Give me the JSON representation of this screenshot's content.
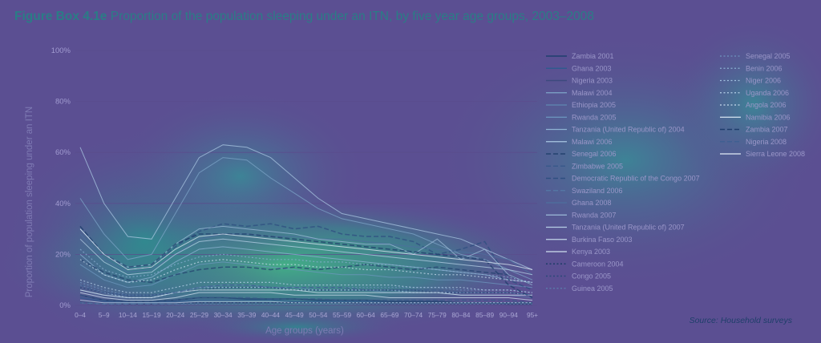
{
  "figure": {
    "title_prefix": "Figure Box 4.1e",
    "title_rest": " Proportion of the population sleeping under an ITN, by five year age groups, 2003–2008",
    "source_label": "Source:",
    "source_text": " Household surveys"
  },
  "chart_data": {
    "type": "line",
    "title": "Proportion of the population sleeping under an ITN, by five year age groups, 2003–2008",
    "xlabel": "Age groups (years)",
    "ylabel": "Proportion of population sleeping under an ITN",
    "ylim": [
      0,
      100
    ],
    "yticks": [
      0,
      20,
      40,
      60,
      80,
      100
    ],
    "ytick_labels": [
      "0%",
      "20%",
      "40%",
      "60%",
      "80%",
      "100%"
    ],
    "grid": true,
    "legend_position": "right",
    "categories": [
      "0–4",
      "5–9",
      "10–14",
      "15–19",
      "20–24",
      "25–29",
      "30–34",
      "35–39",
      "40–44",
      "45–49",
      "50–54",
      "55–59",
      "60–64",
      "65–69",
      "70–74",
      "75–79",
      "80–84",
      "85–89",
      "90–94",
      "95+"
    ],
    "series": [
      {
        "name": "Zambia 2001",
        "style": "solid",
        "color": "#1e3f6e",
        "width": 1.6,
        "values": [
          4,
          2,
          1.5,
          1.5,
          2,
          3,
          3,
          2.5,
          2.5,
          2.5,
          2,
          2,
          2,
          1.5,
          1.5,
          1.5,
          1,
          1,
          0.5,
          0.5
        ]
      },
      {
        "name": "Ghana 2003",
        "style": "solid",
        "color": "#2f5a8f",
        "width": 1.4,
        "values": [
          3,
          1.5,
          1,
          1,
          1.5,
          2,
          2,
          2,
          2,
          1.5,
          1.5,
          1.5,
          1.5,
          1,
          1,
          1,
          1,
          1,
          1,
          1
        ]
      },
      {
        "name": "Nigeria 2003",
        "style": "solid",
        "color": "#3c4a7d",
        "width": 1.4,
        "values": [
          1.5,
          1,
          0.5,
          0.5,
          1,
          1,
          1,
          1,
          1,
          1,
          1,
          1,
          0.5,
          0.5,
          0.5,
          0.5,
          0.5,
          0.5,
          0.5,
          0.5
        ]
      },
      {
        "name": "Malawi 2004",
        "style": "solid",
        "color": "#7ea6c8",
        "width": 1.0,
        "values": [
          42,
          28,
          18,
          20,
          36,
          52,
          58,
          57,
          50,
          44,
          38,
          34,
          32,
          30,
          28,
          24,
          20,
          18,
          14,
          10
        ]
      },
      {
        "name": "Ethiopia 2005",
        "style": "solid",
        "color": "#5f88b2",
        "width": 1.0,
        "values": [
          6,
          4,
          3,
          3,
          5,
          7,
          8,
          8,
          7,
          7,
          6,
          6,
          6,
          5,
          5,
          5,
          4,
          4,
          4,
          3
        ]
      },
      {
        "name": "Rwanda 2005",
        "style": "solid",
        "color": "#6d97bf",
        "width": 1.0,
        "values": [
          16,
          10,
          7,
          8,
          12,
          16,
          17,
          16,
          15,
          14,
          13,
          12,
          12,
          11,
          11,
          10,
          10,
          9,
          8,
          7
        ]
      },
      {
        "name": "Tanzania (United Republic of) 2004",
        "style": "solid",
        "color": "#8fb3d4",
        "width": 1.0,
        "values": [
          20,
          12,
          9,
          11,
          17,
          22,
          23,
          22,
          21,
          20,
          19,
          18,
          17,
          16,
          15,
          14,
          13,
          12,
          10,
          9
        ]
      },
      {
        "name": "Malawi 2006",
        "style": "solid",
        "color": "#a9c7e2",
        "width": 1.0,
        "values": [
          62,
          40,
          27,
          26,
          42,
          58,
          63,
          62,
          58,
          50,
          42,
          36,
          34,
          32,
          30,
          28,
          26,
          22,
          18,
          14
        ]
      },
      {
        "name": "Senegal 2006",
        "style": "dashed",
        "color": "#24426f",
        "width": 1.5,
        "values": [
          18,
          13,
          10,
          9,
          12,
          14,
          15,
          15,
          14,
          15,
          14,
          15,
          16,
          15,
          14,
          15,
          14,
          13,
          12,
          8
        ]
      },
      {
        "name": "Zimbabwe 2005",
        "style": "dashed",
        "color": "#39598a",
        "width": 1.4,
        "values": [
          4,
          2,
          1.5,
          1.5,
          2,
          3,
          3,
          3,
          2.5,
          2.5,
          2.5,
          2,
          2,
          2,
          2,
          2,
          2,
          2,
          2,
          1
        ]
      },
      {
        "name": "Democratic Republic of the Congo 2007",
        "style": "dashed",
        "color": "#2f4f80",
        "width": 1.6,
        "values": [
          30,
          20,
          14,
          15,
          23,
          29,
          32,
          31,
          32,
          30,
          31,
          28,
          27,
          27,
          25,
          20,
          22,
          25,
          10,
          6
        ]
      },
      {
        "name": "Swaziland 2006",
        "style": "dashed",
        "color": "#5479a6",
        "width": 1.2,
        "values": [
          1,
          0.5,
          0.5,
          0.5,
          0.5,
          1,
          1,
          1,
          1,
          1,
          1,
          1,
          1,
          1,
          1,
          1,
          1,
          1,
          1,
          1
        ]
      },
      {
        "name": "Ghana 2008",
        "style": "solid",
        "color": "#4d6f9e",
        "width": 1.2,
        "values": [
          28,
          18,
          13,
          14,
          20,
          26,
          28,
          28,
          27,
          27,
          26,
          26,
          25,
          24,
          23,
          22,
          21,
          20,
          18,
          12
        ]
      },
      {
        "name": "Rwanda 2007",
        "style": "solid",
        "color": "#9dbbd8",
        "width": 1.0,
        "values": [
          30,
          20,
          15,
          16,
          24,
          30,
          31,
          30,
          29,
          28,
          26,
          25,
          24,
          24,
          20,
          26,
          18,
          22,
          12,
          8
        ]
      },
      {
        "name": "Tanzania (United Republic of) 2007",
        "style": "solid",
        "color": "#b7d0e6",
        "width": 1.0,
        "values": [
          26,
          17,
          12,
          13,
          20,
          25,
          26,
          25,
          24,
          23,
          22,
          21,
          20,
          19,
          18,
          17,
          16,
          15,
          14,
          12
        ]
      },
      {
        "name": "Burkina Faso 2003",
        "style": "solid",
        "color": "#c3d7ea",
        "width": 1.0,
        "values": [
          2,
          1,
          1,
          1,
          1,
          1.5,
          1.5,
          1.5,
          1.5,
          1,
          1,
          1,
          1,
          1,
          1,
          1,
          1,
          1,
          1,
          1
        ]
      },
      {
        "name": "Kenya 2003",
        "style": "solid",
        "color": "#d0e0ef",
        "width": 1.0,
        "values": [
          5,
          3,
          2,
          2,
          3,
          5,
          5,
          5,
          5,
          4,
          4,
          4,
          4,
          3,
          3,
          3,
          3,
          3,
          3,
          2
        ]
      },
      {
        "name": "Cameroon 2004",
        "style": "dotted",
        "color": "#1d3b68",
        "width": 1.6,
        "values": [
          1,
          0.5,
          0.5,
          0.5,
          0.5,
          1,
          1,
          1,
          1,
          1,
          1,
          1,
          1,
          1,
          1,
          1,
          1,
          1,
          1,
          1
        ]
      },
      {
        "name": "Congo 2005",
        "style": "dotted",
        "color": "#2b4878",
        "width": 1.6,
        "values": [
          7,
          5,
          4,
          4,
          5,
          6,
          7,
          7,
          7,
          6,
          6,
          6,
          6,
          6,
          6,
          5,
          5,
          5,
          5,
          4
        ]
      },
      {
        "name": "Guinea 2005",
        "style": "dotted",
        "color": "#5b80ad",
        "width": 1.2,
        "values": [
          1,
          0.5,
          0.5,
          0.5,
          0.5,
          0.5,
          0.5,
          0.5,
          0.5,
          0.5,
          0.5,
          0.5,
          0.5,
          0.5,
          0.5,
          0.5,
          0.5,
          0.5,
          0.5,
          0.5
        ]
      },
      {
        "name": "Senegal 2005",
        "style": "dotted",
        "color": "#6e93bf",
        "width": 1.2,
        "values": [
          9,
          6,
          4,
          4,
          5,
          7,
          7,
          7,
          7,
          7,
          7,
          7,
          7,
          7,
          7,
          7,
          6,
          6,
          6,
          5
        ]
      },
      {
        "name": "Benin 2006",
        "style": "dotted",
        "color": "#8aaed1",
        "width": 1.2,
        "values": [
          22,
          14,
          11,
          12,
          16,
          19,
          20,
          19,
          18,
          18,
          17,
          17,
          16,
          16,
          15,
          14,
          13,
          12,
          11,
          9
        ]
      },
      {
        "name": "Niger 2006",
        "style": "dotted",
        "color": "#a0c0de",
        "width": 1.2,
        "values": [
          8,
          5,
          3,
          3,
          5,
          7,
          7,
          7,
          7,
          6,
          6,
          6,
          6,
          6,
          5,
          5,
          5,
          5,
          5,
          4
        ]
      },
      {
        "name": "Uganda 2006",
        "style": "dotted",
        "color": "#b4cfe7",
        "width": 1.2,
        "values": [
          10,
          7,
          5,
          5,
          7,
          9,
          9,
          9,
          9,
          8,
          8,
          8,
          8,
          8,
          7,
          7,
          7,
          6,
          6,
          5
        ]
      },
      {
        "name": "Angola 2006",
        "style": "dotted",
        "color": "#c7dbee",
        "width": 1.2,
        "values": [
          18,
          12,
          9,
          10,
          14,
          17,
          18,
          17,
          16,
          16,
          15,
          15,
          14,
          14,
          13,
          12,
          12,
          11,
          10,
          9
        ]
      },
      {
        "name": "Namibia 2006",
        "style": "solid",
        "color": "#d7e5f2",
        "width": 1.0,
        "values": [
          6,
          4,
          3,
          3,
          5,
          6,
          6,
          6,
          6,
          6,
          5,
          5,
          5,
          5,
          5,
          5,
          4,
          4,
          4,
          4
        ]
      },
      {
        "name": "Zambia 2007",
        "style": "dashed",
        "color": "#1f3d6b",
        "width": 1.6,
        "values": [
          31,
          20,
          15,
          16,
          24,
          28,
          28,
          28,
          27,
          26,
          25,
          24,
          23,
          22,
          21,
          20,
          19,
          18,
          8,
          3
        ]
      },
      {
        "name": "Nigeria 2008",
        "style": "dashed",
        "color": "#3d5f92",
        "width": 1.3,
        "values": [
          8,
          5,
          4,
          4,
          5,
          7,
          8,
          8,
          7,
          7,
          7,
          7,
          6,
          6,
          6,
          6,
          5,
          5,
          5,
          4
        ]
      },
      {
        "name": "Sierra Leone 2008",
        "style": "solid",
        "color": "#e2ecf6",
        "width": 1.0,
        "values": [
          30,
          20,
          14,
          15,
          22,
          27,
          28,
          27,
          26,
          25,
          24,
          23,
          22,
          21,
          20,
          19,
          18,
          17,
          16,
          14
        ]
      }
    ]
  }
}
